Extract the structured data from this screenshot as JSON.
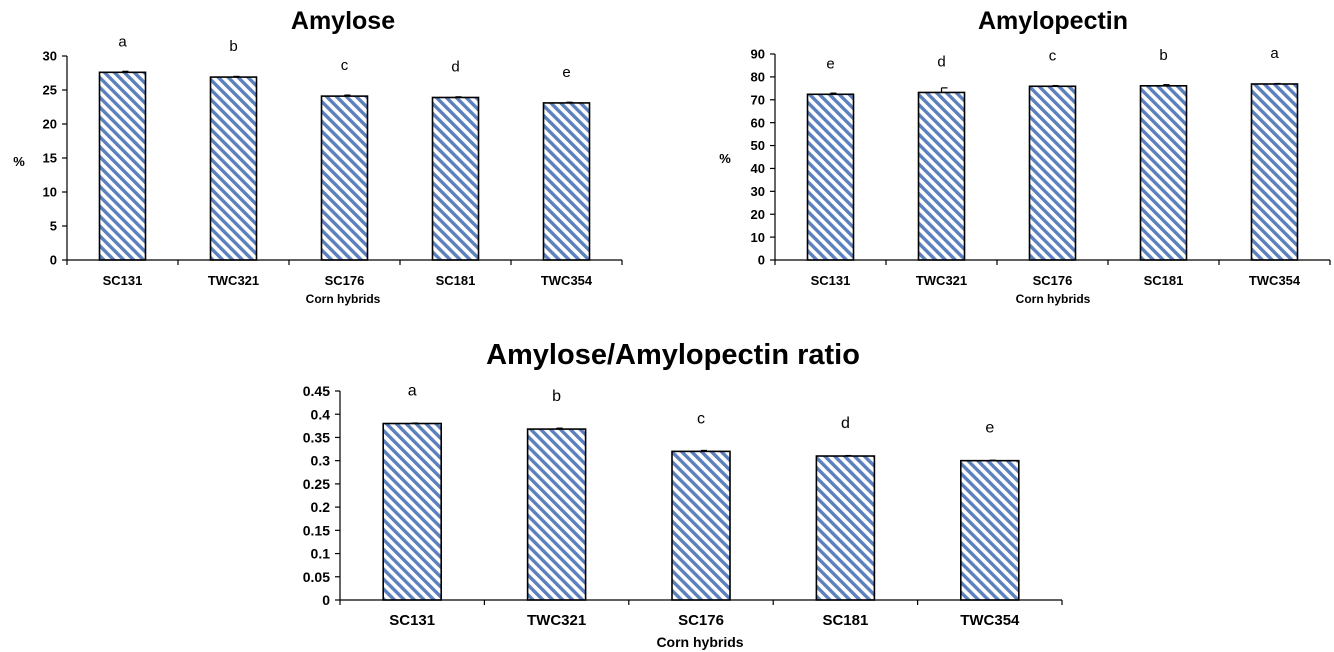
{
  "chart_data": [
    {
      "type": "bar",
      "title": "Amylose",
      "xlabel": "Corn hybrids",
      "ylabel": "%",
      "ylim": [
        0,
        30
      ],
      "yticks": [
        0,
        5,
        10,
        15,
        20,
        25,
        30
      ],
      "categories": [
        "SC131",
        "TWC321",
        "SC176",
        "SC181",
        "TWC354"
      ],
      "values": [
        27.6,
        26.9,
        24.1,
        23.9,
        23.1
      ],
      "errors": [
        0.15,
        0.1,
        0.15,
        0.1,
        0.1
      ],
      "letters": [
        "a",
        "b",
        "c",
        "d",
        "e"
      ],
      "ytick_labels": [
        "0",
        "5",
        "10",
        "15",
        "20",
        "25",
        "30"
      ]
    },
    {
      "type": "bar",
      "title": "Amylopectin",
      "xlabel": "Corn hybrids",
      "ylabel": "%",
      "ylim": [
        0,
        90
      ],
      "yticks": [
        0,
        10,
        20,
        30,
        40,
        50,
        60,
        70,
        80,
        90
      ],
      "categories": [
        "SC131",
        "TWC321",
        "SC176",
        "SC181",
        "TWC354"
      ],
      "values": [
        72.4,
        73.2,
        75.9,
        76.1,
        76.9
      ],
      "errors": [
        0.5,
        2.0,
        0.3,
        0.5,
        0.2
      ],
      "letters": [
        "e",
        "d",
        "c",
        "b",
        "a"
      ],
      "ytick_labels": [
        "0",
        "10",
        "20",
        "30",
        "40",
        "50",
        "60",
        "70",
        "80",
        "90"
      ]
    },
    {
      "type": "bar",
      "title": "Amylose/Amylopectin ratio",
      "xlabel": "Corn hybrids",
      "ylabel": "",
      "ylim": [
        0,
        0.45
      ],
      "yticks": [
        0,
        0.05,
        0.1,
        0.15,
        0.2,
        0.25,
        0.3,
        0.35,
        0.4,
        0.45
      ],
      "categories": [
        "SC131",
        "TWC321",
        "SC176",
        "SC181",
        "TWC354"
      ],
      "values": [
        0.38,
        0.368,
        0.32,
        0.31,
        0.3
      ],
      "errors": [
        0.001,
        0.002,
        0.002,
        0.001,
        0.001
      ],
      "letters": [
        "a",
        "b",
        "c",
        "d",
        "e"
      ],
      "ytick_labels": [
        "0",
        "0.05",
        "0.1",
        "0.15",
        "0.2",
        "0.25",
        "0.3",
        "0.35",
        "0.4",
        "0.45"
      ]
    }
  ],
  "colors": {
    "hatch": "#5b80bd",
    "background": "#ffffff",
    "stroke": "#000000"
  }
}
